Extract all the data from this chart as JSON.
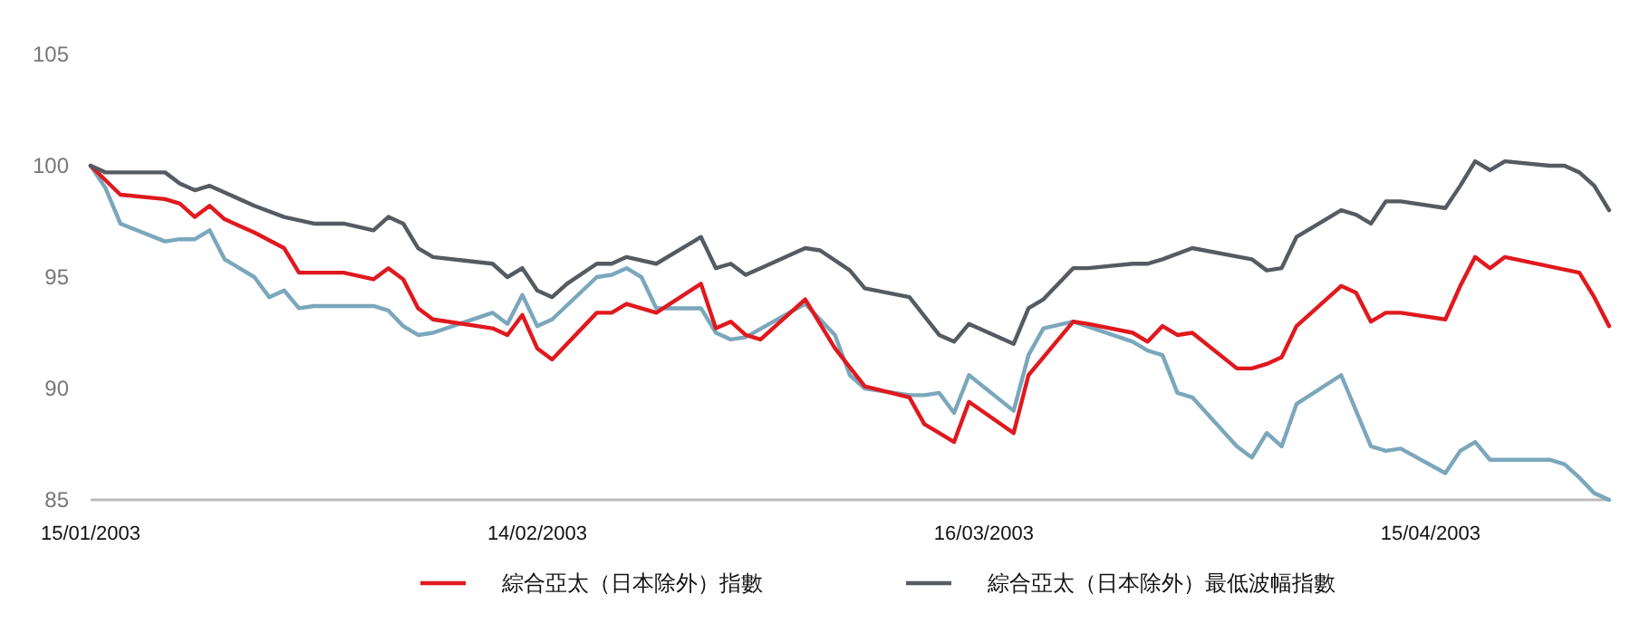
{
  "chart_data": {
    "type": "line",
    "xlim": [
      "2003-01-15",
      "2003-04-27"
    ],
    "xticks": [
      {
        "value": "2003-01-15",
        "label": "15/01/2003"
      },
      {
        "value": "2003-02-14",
        "label": "14/02/2003"
      },
      {
        "value": "2003-03-16",
        "label": "16/03/2003"
      },
      {
        "value": "2003-04-15",
        "label": "15/04/2003"
      }
    ],
    "ylim": [
      85,
      105
    ],
    "yticks": [
      85,
      90,
      95,
      100,
      105
    ],
    "grid": false,
    "legend": "bottom",
    "marker": "none",
    "line_style": "solid",
    "series": [
      {
        "color": "#7ba7bc",
        "x": [
          "2003-01-15",
          "2003-01-16",
          "2003-01-17",
          "2003-01-20",
          "2003-01-21",
          "2003-01-22",
          "2003-01-23",
          "2003-01-24",
          "2003-01-26",
          "2003-01-27",
          "2003-01-28",
          "2003-01-29",
          "2003-01-30",
          "2003-02-03",
          "2003-02-04",
          "2003-02-05",
          "2003-02-06",
          "2003-02-07",
          "2003-02-11",
          "2003-02-12",
          "2003-02-13",
          "2003-02-14",
          "2003-02-15",
          "2003-02-18",
          "2003-02-19",
          "2003-02-20",
          "2003-02-21",
          "2003-02-22",
          "2003-02-25",
          "2003-02-26",
          "2003-02-27",
          "2003-02-28",
          "2003-03-04",
          "2003-03-06",
          "2003-03-07",
          "2003-03-08",
          "2003-03-11",
          "2003-03-12",
          "2003-03-13",
          "2003-03-14",
          "2003-03-15",
          "2003-03-18",
          "2003-03-19",
          "2003-03-20",
          "2003-03-22",
          "2003-03-26",
          "2003-03-27",
          "2003-03-28",
          "2003-03-29",
          "2003-03-30",
          "2003-04-02",
          "2003-04-03",
          "2003-04-04",
          "2003-04-05",
          "2003-04-06",
          "2003-04-09",
          "2003-04-10",
          "2003-04-11",
          "2003-04-12",
          "2003-04-13",
          "2003-04-16",
          "2003-04-17",
          "2003-04-18",
          "2003-04-19",
          "2003-04-23",
          "2003-04-24",
          "2003-04-25",
          "2003-04-26",
          "2003-04-27"
        ],
        "values": [
          100,
          99.0,
          97.4,
          96.6,
          96.7,
          96.7,
          97.1,
          95.8,
          95.0,
          94.1,
          94.4,
          93.6,
          93.7,
          93.7,
          93.5,
          92.8,
          92.4,
          92.5,
          93.4,
          92.9,
          94.2,
          92.8,
          93.1,
          95.0,
          95.1,
          95.4,
          95.0,
          93.6,
          93.6,
          92.5,
          92.2,
          92.3,
          93.8,
          92.4,
          90.6,
          90.0,
          89.7,
          89.7,
          89.8,
          88.9,
          90.6,
          89.0,
          91.5,
          92.7,
          93.0,
          92.1,
          91.7,
          91.5,
          89.8,
          89.6,
          87.4,
          86.9,
          88.0,
          87.4,
          89.3,
          90.6,
          89.0,
          87.4,
          87.2,
          87.3,
          86.2,
          87.2,
          87.6,
          86.8,
          86.8,
          86.6,
          86.0,
          85.3,
          85.0
        ]
      },
      {
        "name": "綜合亞太（日本除外）指數",
        "color": "#e0191e",
        "x": [
          "2003-01-15",
          "2003-01-17",
          "2003-01-20",
          "2003-01-21",
          "2003-01-22",
          "2003-01-23",
          "2003-01-24",
          "2003-01-26",
          "2003-01-28",
          "2003-01-29",
          "2003-02-01",
          "2003-02-03",
          "2003-02-04",
          "2003-02-05",
          "2003-02-06",
          "2003-02-07",
          "2003-02-11",
          "2003-02-12",
          "2003-02-13",
          "2003-02-14",
          "2003-02-15",
          "2003-02-18",
          "2003-02-19",
          "2003-02-20",
          "2003-02-22",
          "2003-02-25",
          "2003-02-26",
          "2003-02-27",
          "2003-02-28",
          "2003-03-01",
          "2003-03-04",
          "2003-03-06",
          "2003-03-08",
          "2003-03-11",
          "2003-03-12",
          "2003-03-13",
          "2003-03-14",
          "2003-03-15",
          "2003-03-18",
          "2003-03-19",
          "2003-03-20",
          "2003-03-22",
          "2003-03-23",
          "2003-03-26",
          "2003-03-27",
          "2003-03-28",
          "2003-03-29",
          "2003-03-30",
          "2003-04-02",
          "2003-04-03",
          "2003-04-04",
          "2003-04-05",
          "2003-04-06",
          "2003-04-09",
          "2003-04-10",
          "2003-04-11",
          "2003-04-12",
          "2003-04-13",
          "2003-04-16",
          "2003-04-17",
          "2003-04-18",
          "2003-04-19",
          "2003-04-20",
          "2003-04-25",
          "2003-04-26",
          "2003-04-27"
        ],
        "values": [
          100,
          98.7,
          98.5,
          98.3,
          97.7,
          98.2,
          97.6,
          97.0,
          96.3,
          95.2,
          95.2,
          94.9,
          95.4,
          94.9,
          93.6,
          93.1,
          92.7,
          92.4,
          93.3,
          91.8,
          91.3,
          93.4,
          93.4,
          93.8,
          93.4,
          94.7,
          92.7,
          93.0,
          92.4,
          92.2,
          94.0,
          91.8,
          90.1,
          89.6,
          88.4,
          88.0,
          87.6,
          89.4,
          88.0,
          90.6,
          91.4,
          93.0,
          92.9,
          92.5,
          92.1,
          92.8,
          92.4,
          92.5,
          90.9,
          90.9,
          91.1,
          91.4,
          92.8,
          94.6,
          94.3,
          93.0,
          93.4,
          93.4,
          93.1,
          94.6,
          95.9,
          95.4,
          95.9,
          95.2,
          94.1,
          92.8
        ]
      },
      {
        "name": "綜合亞太（日本除外）最低波幅指數",
        "color": "#555b61",
        "x": [
          "2003-01-15",
          "2003-01-16",
          "2003-01-20",
          "2003-01-21",
          "2003-01-22",
          "2003-01-23",
          "2003-01-26",
          "2003-01-28",
          "2003-01-30",
          "2003-02-01",
          "2003-02-03",
          "2003-02-04",
          "2003-02-05",
          "2003-02-06",
          "2003-02-07",
          "2003-02-11",
          "2003-02-12",
          "2003-02-13",
          "2003-02-14",
          "2003-02-15",
          "2003-02-16",
          "2003-02-18",
          "2003-02-19",
          "2003-02-20",
          "2003-02-22",
          "2003-02-25",
          "2003-02-26",
          "2003-02-27",
          "2003-02-28",
          "2003-03-01",
          "2003-03-04",
          "2003-03-05",
          "2003-03-07",
          "2003-03-08",
          "2003-03-11",
          "2003-03-13",
          "2003-03-14",
          "2003-03-15",
          "2003-03-18",
          "2003-03-19",
          "2003-03-20",
          "2003-03-22",
          "2003-03-23",
          "2003-03-26",
          "2003-03-27",
          "2003-03-28",
          "2003-03-30",
          "2003-04-03",
          "2003-04-04",
          "2003-04-05",
          "2003-04-06",
          "2003-04-09",
          "2003-04-10",
          "2003-04-11",
          "2003-04-12",
          "2003-04-13",
          "2003-04-16",
          "2003-04-17",
          "2003-04-18",
          "2003-04-19",
          "2003-04-20",
          "2003-04-23",
          "2003-04-24",
          "2003-04-25",
          "2003-04-26",
          "2003-04-27"
        ],
        "values": [
          100,
          99.7,
          99.7,
          99.2,
          98.9,
          99.1,
          98.2,
          97.7,
          97.4,
          97.4,
          97.1,
          97.7,
          97.4,
          96.3,
          95.9,
          95.6,
          95.0,
          95.4,
          94.4,
          94.1,
          94.7,
          95.6,
          95.6,
          95.9,
          95.6,
          96.8,
          95.4,
          95.6,
          95.1,
          95.4,
          96.3,
          96.2,
          95.3,
          94.5,
          94.1,
          92.4,
          92.1,
          92.9,
          92.0,
          93.6,
          94.0,
          95.4,
          95.4,
          95.6,
          95.6,
          95.8,
          96.3,
          95.8,
          95.3,
          95.4,
          96.8,
          98.0,
          97.8,
          97.4,
          98.4,
          98.4,
          98.1,
          99.1,
          100.2,
          99.8,
          100.2,
          100.0,
          100.0,
          99.7,
          99.1,
          98.0
        ]
      }
    ]
  }
}
